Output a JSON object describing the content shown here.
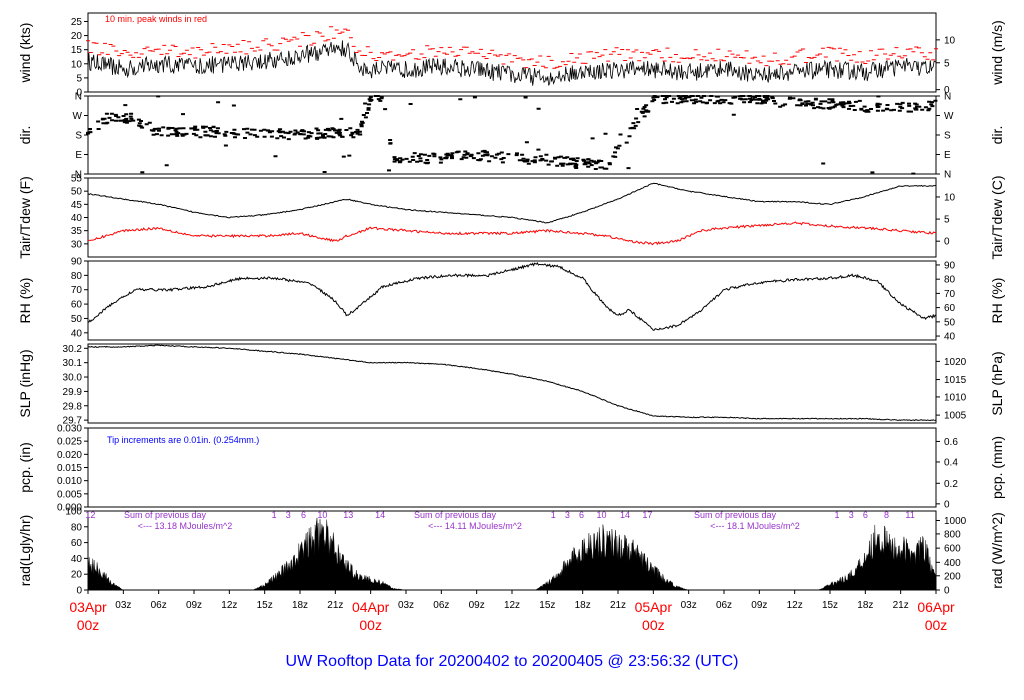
{
  "title": "UW Rooftop Data for 20200402  to  20200405 @ 23:56:32  (UTC)",
  "colors": {
    "primary": "#000000",
    "secondary": "#ff0000",
    "title": "#0000ff",
    "note_purple": "#9933cc"
  },
  "time_axis": {
    "hours_total": 72,
    "tick_labels": [
      "03z",
      "06z",
      "09z",
      "12z",
      "15z",
      "18z",
      "21z",
      "03z",
      "06z",
      "09z",
      "12z",
      "15z",
      "18z",
      "21z",
      "03z",
      "06z",
      "09z",
      "12z",
      "15z",
      "18z",
      "21z"
    ],
    "day_labels": [
      {
        "date": "03Apr",
        "hour": "00z",
        "t": 0
      },
      {
        "date": "04Apr",
        "hour": "00z",
        "t": 24
      },
      {
        "date": "05Apr",
        "hour": "00z",
        "t": 48
      },
      {
        "date": "06Apr",
        "hour": "00z",
        "t": 72
      }
    ]
  },
  "chart_data": [
    {
      "id": "wind",
      "type": "line",
      "ylabel_left": "wind (kts)",
      "ylabel_right": "wind (m/s)",
      "ylim": [
        0,
        28
      ],
      "left_ticks": [
        "0",
        "5",
        "10",
        "15",
        "20",
        "25"
      ],
      "right_ticks": [
        "0",
        "5",
        "10"
      ],
      "annotation": "10 min. peak winds in red",
      "key_points": [
        [
          0,
          11
        ],
        [
          3,
          8
        ],
        [
          6,
          10
        ],
        [
          9,
          9
        ],
        [
          12,
          10
        ],
        [
          15,
          11
        ],
        [
          18,
          13
        ],
        [
          20,
          14
        ],
        [
          21,
          16
        ],
        [
          22,
          15
        ],
        [
          23,
          9
        ],
        [
          24,
          8
        ],
        [
          27,
          8
        ],
        [
          30,
          9
        ],
        [
          33,
          8
        ],
        [
          36,
          6
        ],
        [
          39,
          5
        ],
        [
          42,
          7
        ],
        [
          45,
          8
        ],
        [
          48,
          8
        ],
        [
          51,
          7
        ],
        [
          54,
          8
        ],
        [
          57,
          6
        ],
        [
          60,
          7
        ],
        [
          63,
          8
        ],
        [
          66,
          7
        ],
        [
          69,
          9
        ],
        [
          72,
          8
        ]
      ]
    },
    {
      "id": "dir",
      "type": "scatter",
      "ylabel_left": "dir.",
      "ylabel_right": "dir.",
      "ylim": [
        0,
        360
      ],
      "left_ticks": [
        "N",
        "E",
        "S",
        "W",
        "N"
      ],
      "right_ticks": [
        "N",
        "E",
        "S",
        "W",
        "N"
      ],
      "key_points": [
        [
          0,
          200
        ],
        [
          2,
          270
        ],
        [
          4,
          250
        ],
        [
          6,
          190
        ],
        [
          10,
          195
        ],
        [
          14,
          185
        ],
        [
          18,
          185
        ],
        [
          23,
          190
        ],
        [
          24,
          345
        ],
        [
          25,
          340
        ],
        [
          26,
          70
        ],
        [
          30,
          75
        ],
        [
          33,
          85
        ],
        [
          36,
          75
        ],
        [
          40,
          60
        ],
        [
          44,
          35
        ],
        [
          48,
          345
        ],
        [
          52,
          350
        ],
        [
          56,
          345
        ],
        [
          60,
          330
        ],
        [
          64,
          320
        ],
        [
          68,
          300
        ],
        [
          72,
          320
        ]
      ]
    },
    {
      "id": "temp",
      "type": "line",
      "ylabel_left": "Tair/Tdew (F)",
      "ylabel_right": "Tair/Tdew (C)",
      "ylim": [
        25,
        55
      ],
      "left_ticks": [
        "30",
        "35",
        "40",
        "45",
        "50",
        "55"
      ],
      "right_ticks": [
        "0",
        "5",
        "10"
      ],
      "series": [
        {
          "name": "Tair",
          "key_points": [
            [
              0,
              49
            ],
            [
              3,
              47
            ],
            [
              6,
              45
            ],
            [
              9,
              42
            ],
            [
              12,
              40
            ],
            [
              15,
              41
            ],
            [
              18,
              43
            ],
            [
              21,
              46
            ],
            [
              22,
              47
            ],
            [
              24,
              45
            ],
            [
              27,
              43
            ],
            [
              30,
              42
            ],
            [
              33,
              41
            ],
            [
              36,
              40
            ],
            [
              39,
              38
            ],
            [
              42,
              42
            ],
            [
              45,
              47
            ],
            [
              48,
              53
            ],
            [
              51,
              50
            ],
            [
              54,
              48
            ],
            [
              57,
              46
            ],
            [
              60,
              46
            ],
            [
              63,
              45
            ],
            [
              66,
              48
            ],
            [
              69,
              52
            ],
            [
              72,
              52
            ]
          ]
        },
        {
          "name": "Tdew",
          "key_points": [
            [
              0,
              31
            ],
            [
              3,
              35
            ],
            [
              6,
              36
            ],
            [
              9,
              33
            ],
            [
              12,
              33
            ],
            [
              15,
              33
            ],
            [
              18,
              34
            ],
            [
              21,
              31
            ],
            [
              22,
              33
            ],
            [
              24,
              36
            ],
            [
              27,
              35
            ],
            [
              30,
              34
            ],
            [
              33,
              34
            ],
            [
              36,
              34
            ],
            [
              39,
              35
            ],
            [
              42,
              34
            ],
            [
              44,
              33
            ],
            [
              46,
              31
            ],
            [
              48,
              30
            ],
            [
              50,
              31
            ],
            [
              52,
              35
            ],
            [
              54,
              36
            ],
            [
              57,
              37
            ],
            [
              60,
              38
            ],
            [
              62,
              37
            ],
            [
              66,
              36
            ],
            [
              69,
              35
            ],
            [
              72,
              34
            ]
          ]
        }
      ]
    },
    {
      "id": "rh",
      "type": "line",
      "ylabel_left": "RH (%)",
      "ylabel_right": "RH (%)",
      "ylim": [
        35,
        90
      ],
      "left_ticks": [
        "40",
        "50",
        "60",
        "70",
        "80",
        "90"
      ],
      "right_ticks": [
        "40",
        "50",
        "60",
        "70",
        "80",
        "90"
      ],
      "key_points": [
        [
          0,
          47
        ],
        [
          2,
          60
        ],
        [
          4,
          70
        ],
        [
          7,
          70
        ],
        [
          10,
          72
        ],
        [
          13,
          78
        ],
        [
          16,
          78
        ],
        [
          19,
          74
        ],
        [
          21,
          62
        ],
        [
          22,
          52
        ],
        [
          23,
          58
        ],
        [
          25,
          72
        ],
        [
          28,
          78
        ],
        [
          31,
          80
        ],
        [
          34,
          80
        ],
        [
          36,
          84
        ],
        [
          38,
          88
        ],
        [
          40,
          86
        ],
        [
          42,
          78
        ],
        [
          44,
          58
        ],
        [
          45,
          52
        ],
        [
          46,
          56
        ],
        [
          48,
          42
        ],
        [
          50,
          45
        ],
        [
          52,
          55
        ],
        [
          54,
          70
        ],
        [
          57,
          75
        ],
        [
          60,
          77
        ],
        [
          63,
          78
        ],
        [
          65,
          80
        ],
        [
          67,
          76
        ],
        [
          69,
          60
        ],
        [
          71,
          50
        ],
        [
          72,
          52
        ]
      ]
    },
    {
      "id": "slp",
      "type": "line",
      "ylabel_left": "SLP (inHg)",
      "ylabel_right": "SLP (hPa)",
      "ylim": [
        29.68,
        30.23
      ],
      "left_ticks": [
        "29.7",
        "29.8",
        "29.9",
        "30.0",
        "30.1",
        "30.2"
      ],
      "right_ticks": [
        "1005",
        "1010",
        "1015",
        "1020"
      ],
      "key_points": [
        [
          0,
          30.21
        ],
        [
          3,
          30.21
        ],
        [
          6,
          30.22
        ],
        [
          9,
          30.21
        ],
        [
          12,
          30.2
        ],
        [
          15,
          30.18
        ],
        [
          18,
          30.16
        ],
        [
          21,
          30.13
        ],
        [
          24,
          30.1
        ],
        [
          27,
          30.1
        ],
        [
          30,
          30.09
        ],
        [
          33,
          30.06
        ],
        [
          36,
          30.02
        ],
        [
          39,
          29.97
        ],
        [
          42,
          29.9
        ],
        [
          45,
          29.8
        ],
        [
          48,
          29.73
        ],
        [
          51,
          29.72
        ],
        [
          54,
          29.72
        ],
        [
          57,
          29.71
        ],
        [
          60,
          29.71
        ],
        [
          63,
          29.71
        ],
        [
          66,
          29.71
        ],
        [
          69,
          29.7
        ],
        [
          72,
          29.7
        ]
      ]
    },
    {
      "id": "pcp",
      "type": "line",
      "ylabel_left": "pcp. (in)",
      "ylabel_right": "pcp. (mm)",
      "ylim": [
        0,
        0.03
      ],
      "left_ticks": [
        "0.000",
        "0.005",
        "0.010",
        "0.015",
        "0.020",
        "0.025",
        "0.030"
      ],
      "right_ticks": [
        "0",
        "0.2",
        "0.4",
        "0.6"
      ],
      "annotation": "Tip increments are 0.01in. (0.254mm.)",
      "key_points": []
    },
    {
      "id": "rad",
      "type": "area",
      "ylabel_left": "rad(Lgly/hr)",
      "ylabel_right": "rad (W/m^2)",
      "ylim": [
        0,
        100
      ],
      "left_ticks": [
        "0",
        "20",
        "40",
        "60",
        "80",
        "100"
      ],
      "right_ticks": [
        "0",
        "200",
        "400",
        "600",
        "800",
        "1000"
      ],
      "key_points": [
        [
          0,
          38
        ],
        [
          1,
          30
        ],
        [
          2,
          10
        ],
        [
          3,
          0
        ],
        [
          14,
          0
        ],
        [
          15,
          8
        ],
        [
          16,
          20
        ],
        [
          17,
          35
        ],
        [
          18,
          55
        ],
        [
          19,
          75
        ],
        [
          20,
          85
        ],
        [
          21,
          60
        ],
        [
          22,
          35
        ],
        [
          23,
          20
        ],
        [
          24,
          15
        ],
        [
          25,
          10
        ],
        [
          26,
          2
        ],
        [
          27,
          0
        ],
        [
          38,
          0
        ],
        [
          39,
          10
        ],
        [
          40,
          25
        ],
        [
          41,
          45
        ],
        [
          42,
          60
        ],
        [
          43,
          72
        ],
        [
          44,
          73
        ],
        [
          45,
          68
        ],
        [
          46,
          60
        ],
        [
          47,
          45
        ],
        [
          48,
          30
        ],
        [
          49,
          15
        ],
        [
          50,
          5
        ],
        [
          51,
          0
        ],
        [
          62,
          0
        ],
        [
          63,
          8
        ],
        [
          64,
          15
        ],
        [
          65,
          25
        ],
        [
          66,
          50
        ],
        [
          67,
          82
        ],
        [
          68,
          65
        ],
        [
          69,
          60
        ],
        [
          70,
          55
        ],
        [
          71,
          62
        ],
        [
          72,
          15
        ]
      ],
      "day_summaries": [
        {
          "header": "Sum of previous day",
          "value": "<--- 13.18 MJoules/m^2"
        },
        {
          "header": "Sum of previous day",
          "value": "<--- 14.11 MJoules/m^2"
        },
        {
          "header": "Sum of previous day",
          "value": "<--- 18.1 MJoules/m^2"
        }
      ],
      "hour_marks": [
        {
          "t": 0.2,
          "label": "12"
        },
        {
          "t": 15.8,
          "label": "1"
        },
        {
          "t": 17.0,
          "label": "3"
        },
        {
          "t": 18.3,
          "label": "6"
        },
        {
          "t": 19.9,
          "label": "10"
        },
        {
          "t": 22.1,
          "label": "13"
        },
        {
          "t": 24.8,
          "label": "14"
        },
        {
          "t": 39.5,
          "label": "1"
        },
        {
          "t": 40.7,
          "label": "3"
        },
        {
          "t": 41.9,
          "label": "6"
        },
        {
          "t": 43.6,
          "label": "10"
        },
        {
          "t": 45.6,
          "label": "14"
        },
        {
          "t": 47.5,
          "label": "17"
        },
        {
          "t": 63.6,
          "label": "1"
        },
        {
          "t": 64.8,
          "label": "3"
        },
        {
          "t": 66.0,
          "label": "6"
        },
        {
          "t": 67.8,
          "label": "8"
        },
        {
          "t": 69.8,
          "label": "11"
        }
      ]
    }
  ]
}
